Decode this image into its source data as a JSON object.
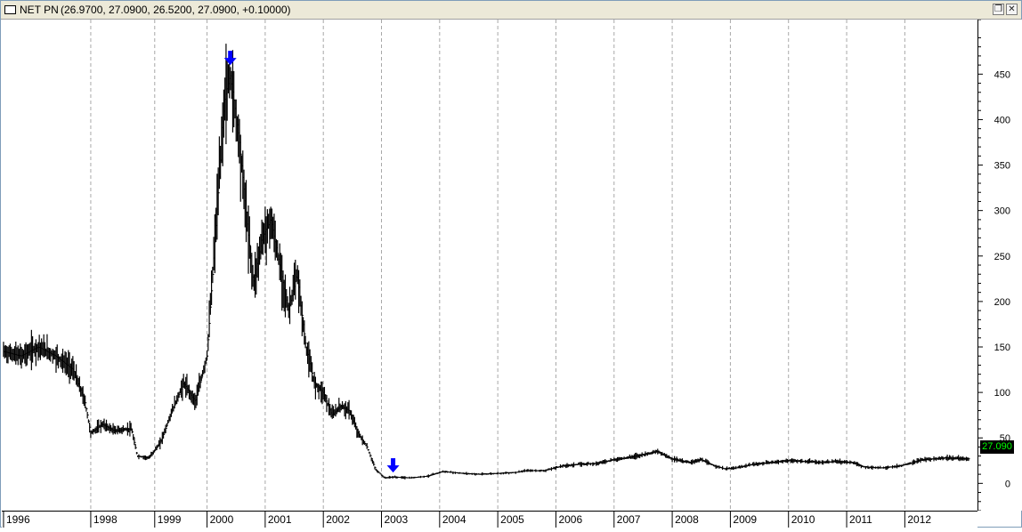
{
  "window": {
    "symbol": "NET PN",
    "quote": "(26.9700, 27.0900, 26.5200, 27.0900, +0.10000)",
    "restore_glyph": "❐",
    "close_glyph": "✕"
  },
  "chart_data": {
    "type": "ohlc-bar",
    "price_axis": {
      "ylim": [
        -30,
        510
      ],
      "ticks": [
        0,
        50,
        100,
        150,
        200,
        250,
        300,
        350,
        400,
        450
      ]
    },
    "time_axis": {
      "xlim": [
        1995.97,
        2012.75
      ],
      "labels": [
        "1996",
        "1998",
        "1999",
        "2000",
        "2001",
        "2002",
        "2003",
        "2004",
        "2005",
        "2006",
        "2007",
        "2008",
        "2009",
        "2010",
        "2011",
        "2012"
      ],
      "label_positions": [
        1996.0,
        1997.5,
        1998.6,
        1999.5,
        2000.5,
        2001.5,
        2002.5,
        2003.5,
        2004.5,
        2005.5,
        2006.5,
        2007.5,
        2008.5,
        2009.5,
        2010.5,
        2011.5
      ]
    },
    "gridlines": "vertical dashed at year labels",
    "series": [
      {
        "x": 1996.0,
        "y": 145
      },
      {
        "x": 1996.3,
        "y": 140
      },
      {
        "x": 1996.6,
        "y": 150
      },
      {
        "x": 1996.9,
        "y": 140
      },
      {
        "x": 1997.2,
        "y": 125
      },
      {
        "x": 1997.4,
        "y": 90
      },
      {
        "x": 1997.5,
        "y": 55
      },
      {
        "x": 1997.7,
        "y": 65
      },
      {
        "x": 1997.9,
        "y": 58
      },
      {
        "x": 1998.2,
        "y": 60
      },
      {
        "x": 1998.3,
        "y": 30
      },
      {
        "x": 1998.5,
        "y": 28
      },
      {
        "x": 1998.7,
        "y": 45
      },
      {
        "x": 1998.9,
        "y": 80
      },
      {
        "x": 1999.1,
        "y": 110
      },
      {
        "x": 1999.3,
        "y": 90
      },
      {
        "x": 1999.5,
        "y": 140
      },
      {
        "x": 1999.65,
        "y": 280
      },
      {
        "x": 1999.8,
        "y": 420
      },
      {
        "x": 1999.9,
        "y": 450
      },
      {
        "x": 2000.05,
        "y": 380
      },
      {
        "x": 2000.2,
        "y": 280
      },
      {
        "x": 2000.3,
        "y": 220
      },
      {
        "x": 2000.45,
        "y": 270
      },
      {
        "x": 2000.6,
        "y": 290
      },
      {
        "x": 2000.75,
        "y": 240
      },
      {
        "x": 2000.9,
        "y": 190
      },
      {
        "x": 2001.05,
        "y": 230
      },
      {
        "x": 2001.2,
        "y": 150
      },
      {
        "x": 2001.35,
        "y": 110
      },
      {
        "x": 2001.5,
        "y": 100
      },
      {
        "x": 2001.65,
        "y": 75
      },
      {
        "x": 2001.8,
        "y": 85
      },
      {
        "x": 2001.95,
        "y": 80
      },
      {
        "x": 2002.1,
        "y": 55
      },
      {
        "x": 2002.25,
        "y": 40
      },
      {
        "x": 2002.4,
        "y": 15
      },
      {
        "x": 2002.55,
        "y": 6
      },
      {
        "x": 2002.7,
        "y": 7
      },
      {
        "x": 2003.0,
        "y": 6
      },
      {
        "x": 2003.3,
        "y": 8
      },
      {
        "x": 2003.55,
        "y": 13
      },
      {
        "x": 2003.9,
        "y": 11
      },
      {
        "x": 2004.2,
        "y": 10
      },
      {
        "x": 2004.5,
        "y": 11
      },
      {
        "x": 2004.8,
        "y": 12
      },
      {
        "x": 2005.0,
        "y": 14
      },
      {
        "x": 2005.3,
        "y": 14
      },
      {
        "x": 2005.6,
        "y": 19
      },
      {
        "x": 2005.9,
        "y": 21
      },
      {
        "x": 2006.2,
        "y": 22
      },
      {
        "x": 2006.5,
        "y": 26
      },
      {
        "x": 2006.8,
        "y": 29
      },
      {
        "x": 2007.1,
        "y": 33
      },
      {
        "x": 2007.25,
        "y": 35
      },
      {
        "x": 2007.5,
        "y": 27
      },
      {
        "x": 2007.8,
        "y": 23
      },
      {
        "x": 2008.0,
        "y": 26
      },
      {
        "x": 2008.2,
        "y": 20
      },
      {
        "x": 2008.4,
        "y": 16
      },
      {
        "x": 2008.6,
        "y": 17
      },
      {
        "x": 2008.9,
        "y": 21
      },
      {
        "x": 2009.2,
        "y": 23
      },
      {
        "x": 2009.5,
        "y": 25
      },
      {
        "x": 2009.8,
        "y": 24
      },
      {
        "x": 2010.1,
        "y": 23
      },
      {
        "x": 2010.3,
        "y": 24
      },
      {
        "x": 2010.6,
        "y": 23
      },
      {
        "x": 2010.8,
        "y": 18
      },
      {
        "x": 2011.1,
        "y": 17
      },
      {
        "x": 2011.4,
        "y": 19
      },
      {
        "x": 2011.6,
        "y": 22
      },
      {
        "x": 2011.8,
        "y": 26
      },
      {
        "x": 2012.2,
        "y": 28
      },
      {
        "x": 2012.6,
        "y": 27
      }
    ],
    "markers": [
      {
        "type": "down-arrow",
        "x": 1999.9,
        "y": 460,
        "color": "#0000ff"
      },
      {
        "type": "down-arrow",
        "x": 2002.7,
        "y": 12,
        "color": "#0000ff"
      }
    ],
    "last_value": "27.090",
    "last_value_y": 27.09
  },
  "colors": {
    "bars": "#000000",
    "grid": "#a8a8a8",
    "arrow": "#0000ff",
    "badge_bg": "#000000",
    "badge_text": "#00ff00"
  }
}
